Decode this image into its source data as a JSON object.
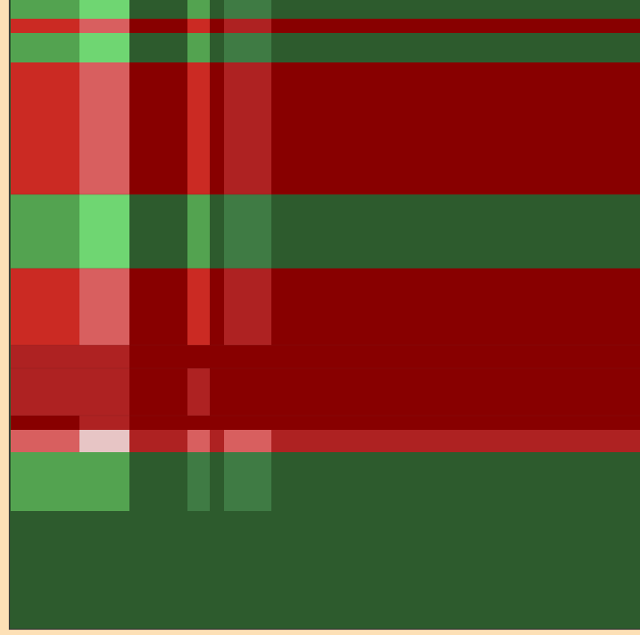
{
  "chart_data": {
    "type": "heatmap",
    "title": "",
    "xlabel": "",
    "ylabel": "",
    "tick_labels_visible": false,
    "legend": "none",
    "palette": {
      "2": "#6fd672",
      "1": "#53a350",
      "0.5": "#3f7b44",
      "0": "#2d5b2d",
      "-0.5": "#ae2222",
      "-1": "#cb2a23",
      "-2": "#d85f5f",
      "-3": "#880000",
      "-4": "#e7c5c5"
    },
    "matrix": [
      [
        1,
        2,
        0,
        1,
        0,
        0.5,
        0
      ],
      [
        -1,
        -2,
        -3,
        -1,
        -3,
        -0.5,
        -3
      ],
      [
        1,
        2,
        0,
        1,
        0,
        0.5,
        0
      ],
      [
        -1,
        -2,
        -3,
        -1,
        -3,
        -0.5,
        -3
      ],
      [
        1,
        2,
        0,
        1,
        0,
        0.5,
        0
      ],
      [
        -1,
        -2,
        -3,
        -1,
        -3,
        -0.5,
        -3
      ],
      [
        -0.5,
        -0.5,
        -3,
        -3,
        -3,
        -3,
        -3
      ],
      [
        -0.5,
        -0.5,
        -3,
        -0.5,
        -3,
        -3,
        -3
      ],
      [
        -3,
        -0.5,
        -3,
        -3,
        -3,
        -3,
        -3
      ],
      [
        -2,
        -4,
        -0.5,
        -2,
        -0.5,
        -2,
        -0.5
      ],
      [
        1,
        1,
        0,
        0.5,
        0,
        0.5,
        0
      ],
      [
        0,
        0,
        0,
        0,
        0,
        0,
        0
      ]
    ]
  }
}
